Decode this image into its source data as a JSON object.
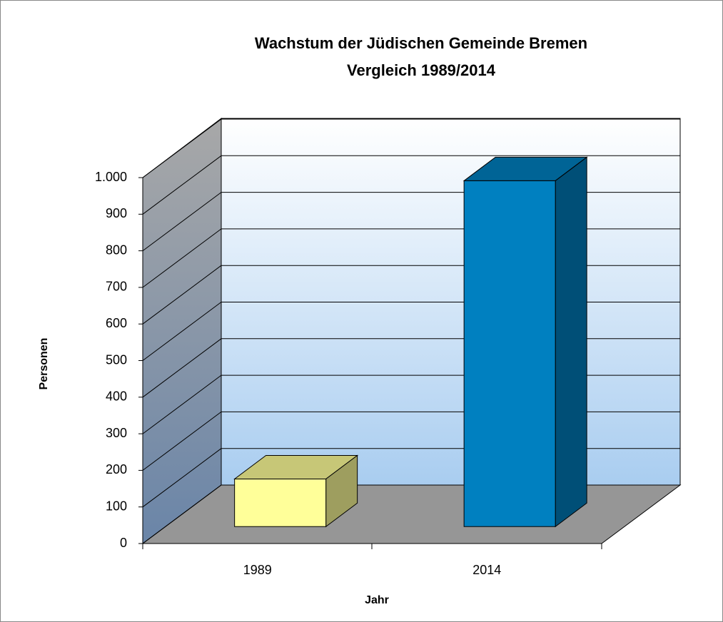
{
  "chart_data": {
    "type": "bar3d",
    "title": [
      "Wachstum der Jüdischen Gemeinde Bremen",
      "Vergleich 1989/2014"
    ],
    "x_label": "Jahr",
    "y_label": "Personen",
    "categories": [
      "1989",
      "2014"
    ],
    "values": [
      130,
      945
    ],
    "colors": [
      "#ffff99",
      "#0080c0"
    ],
    "ylim": [
      0,
      1000
    ],
    "yticks": [
      0,
      100,
      200,
      300,
      400,
      500,
      600,
      700,
      800,
      900,
      {
        "value": 1000,
        "label": "1.000"
      }
    ],
    "grid": true
  }
}
